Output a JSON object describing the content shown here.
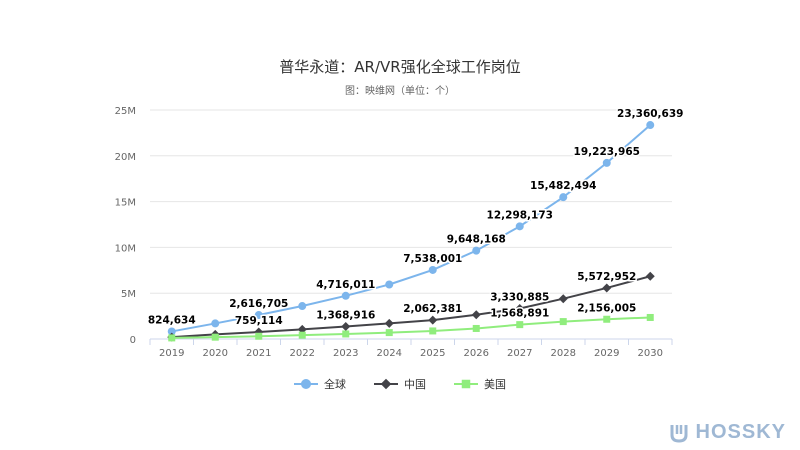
{
  "chart_data": {
    "type": "line",
    "title": "普华永道：AR/VR强化全球工作岗位",
    "subtitle": "图：映维网（单位：个）",
    "categories": [
      "2019",
      "2020",
      "2021",
      "2022",
      "2023",
      "2024",
      "2025",
      "2026",
      "2027",
      "2028",
      "2029",
      "2030"
    ],
    "ylim": [
      0,
      25000000
    ],
    "yticks": [
      {
        "value": 0,
        "label": "0"
      },
      {
        "value": 5000000,
        "label": "5M"
      },
      {
        "value": 10000000,
        "label": "10M"
      },
      {
        "value": 15000000,
        "label": "15M"
      },
      {
        "value": 20000000,
        "label": "20M"
      },
      {
        "value": 25000000,
        "label": "25M"
      }
    ],
    "series": [
      {
        "name": "全球",
        "color": "#7cb5ec",
        "marker": "circle",
        "values": [
          824634,
          1700000,
          2616705,
          3600000,
          4716011,
          5950000,
          7538001,
          9648168,
          12298173,
          15482494,
          19223965,
          23360639
        ],
        "labels": [
          "824,634",
          null,
          "2,616,705",
          null,
          "4,716,011",
          null,
          "7,538,001",
          "9,648,168",
          "12,298,173",
          "15,482,494",
          "19,223,965",
          "23,360,639"
        ]
      },
      {
        "name": "中国",
        "color": "#434348",
        "marker": "diamond",
        "values": [
          200000,
          500000,
          759114,
          1050000,
          1368916,
          1700000,
          2062381,
          2650000,
          3330885,
          4400000,
          5572952,
          6850000
        ],
        "labels": [
          null,
          null,
          "759,114",
          null,
          "1,368,916",
          null,
          "2,062,381",
          null,
          "3,330,885",
          null,
          "5,572,952",
          null
        ]
      },
      {
        "name": "美国",
        "color": "#90ed7d",
        "marker": "square",
        "values": [
          120000,
          200000,
          300000,
          420000,
          550000,
          700000,
          880000,
          1150000,
          1568891,
          1900000,
          2156005,
          2350000
        ],
        "labels": [
          null,
          null,
          null,
          null,
          null,
          null,
          null,
          null,
          "1,568,891",
          null,
          "2,156,005",
          null
        ]
      }
    ],
    "legend_position": "bottom-center"
  },
  "watermark_text": "HOSSKY"
}
